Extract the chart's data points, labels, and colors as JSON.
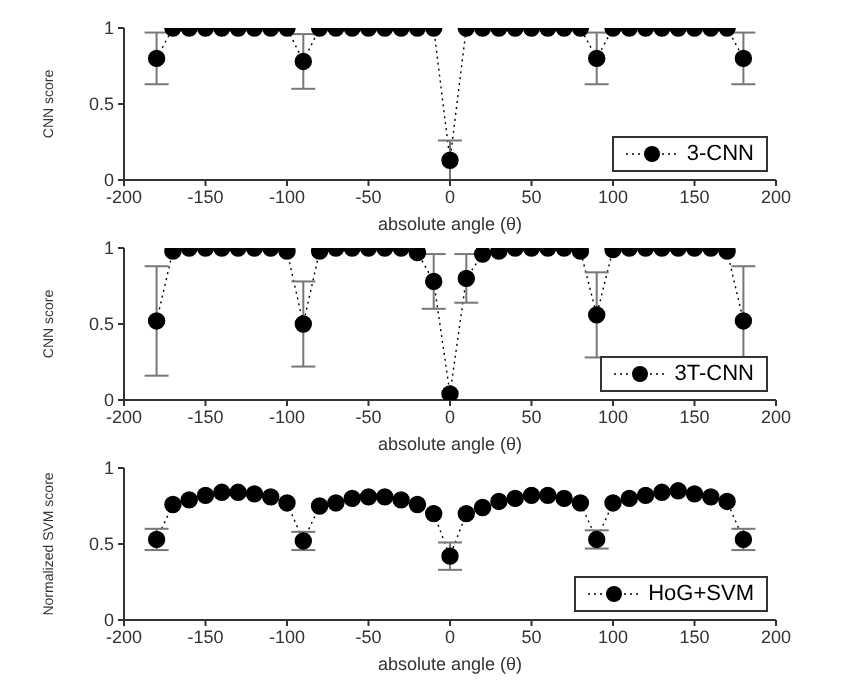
{
  "chart_data": [
    {
      "type": "line",
      "xlabel": "absolute angle (θ)",
      "ylabel": "CNN score",
      "x": [
        -180,
        -170,
        -160,
        -150,
        -140,
        -130,
        -120,
        -110,
        -100,
        -90,
        -80,
        -70,
        -60,
        -50,
        -40,
        -30,
        -20,
        -10,
        0,
        10,
        20,
        30,
        40,
        50,
        60,
        70,
        80,
        90,
        100,
        110,
        120,
        130,
        140,
        150,
        160,
        170,
        180
      ],
      "xlim": [
        -200,
        200
      ],
      "xticks": [
        -200,
        -150,
        -100,
        -50,
        0,
        50,
        100,
        150,
        200
      ],
      "ylim": [
        0,
        1
      ],
      "yticks": [
        0,
        0.5,
        1
      ],
      "legend": "bottom right",
      "marker": "circle",
      "line_style": "dotted",
      "grid": false,
      "series": [
        {
          "name": "3-CNN",
          "color": "#000000",
          "values": [
            0.8,
            1,
            1,
            1,
            1,
            1,
            1,
            1,
            1,
            0.78,
            1,
            1,
            1,
            1,
            1,
            1,
            1,
            1,
            0.13,
            1,
            1,
            1,
            1,
            1,
            1,
            1,
            1,
            0.8,
            1,
            1,
            1,
            1,
            1,
            1,
            1,
            1,
            0.8
          ],
          "errors": [
            0.17,
            null,
            null,
            null,
            null,
            null,
            null,
            null,
            null,
            0.18,
            null,
            null,
            null,
            null,
            null,
            null,
            null,
            null,
            0.13,
            null,
            null,
            null,
            null,
            null,
            null,
            null,
            null,
            0.17,
            null,
            null,
            null,
            null,
            null,
            null,
            null,
            null,
            0.17
          ]
        }
      ]
    },
    {
      "type": "line",
      "xlabel": "absolute angle (θ)",
      "ylabel": "CNN score",
      "x": [
        -180,
        -170,
        -160,
        -150,
        -140,
        -130,
        -120,
        -110,
        -100,
        -90,
        -80,
        -70,
        -60,
        -50,
        -40,
        -30,
        -20,
        -10,
        0,
        10,
        20,
        30,
        40,
        50,
        60,
        70,
        80,
        90,
        100,
        110,
        120,
        130,
        140,
        150,
        160,
        170,
        180
      ],
      "xlim": [
        -200,
        200
      ],
      "xticks": [
        -200,
        -150,
        -100,
        -50,
        0,
        50,
        100,
        150,
        200
      ],
      "ylim": [
        0,
        1
      ],
      "yticks": [
        0,
        0.5,
        1
      ],
      "legend": "bottom right",
      "marker": "circle",
      "line_style": "dotted",
      "grid": false,
      "series": [
        {
          "name": "3T-CNN",
          "color": "#000000",
          "values": [
            0.52,
            0.98,
            1,
            1,
            1,
            1,
            1,
            1,
            0.98,
            0.5,
            0.98,
            1,
            1,
            1,
            1,
            1,
            0.97,
            0.78,
            0.04,
            0.8,
            0.96,
            0.98,
            1,
            1,
            1,
            1,
            0.98,
            0.56,
            0.99,
            1,
            1,
            1,
            1,
            1,
            1,
            0.98,
            0.52
          ],
          "errors": [
            0.36,
            null,
            null,
            null,
            null,
            null,
            null,
            null,
            null,
            0.28,
            null,
            null,
            null,
            null,
            null,
            null,
            null,
            0.18,
            null,
            0.16,
            null,
            null,
            null,
            null,
            null,
            null,
            null,
            0.28,
            null,
            null,
            null,
            null,
            null,
            null,
            null,
            null,
            0.36
          ]
        }
      ]
    },
    {
      "type": "line",
      "xlabel": "absolute angle (θ)",
      "ylabel": "Normalized SVM score",
      "x": [
        -180,
        -170,
        -160,
        -150,
        -140,
        -130,
        -120,
        -110,
        -100,
        -90,
        -80,
        -70,
        -60,
        -50,
        -40,
        -30,
        -20,
        -10,
        0,
        10,
        20,
        30,
        40,
        50,
        60,
        70,
        80,
        90,
        100,
        110,
        120,
        130,
        140,
        150,
        160,
        170,
        180
      ],
      "xlim": [
        -200,
        200
      ],
      "xticks": [
        -200,
        -150,
        -100,
        -50,
        0,
        50,
        100,
        150,
        200
      ],
      "ylim": [
        0,
        1
      ],
      "yticks": [
        0,
        0.5,
        1
      ],
      "legend": "bottom right",
      "marker": "circle",
      "line_style": "dotted",
      "grid": false,
      "series": [
        {
          "name": "HoG+SVM",
          "color": "#000000",
          "values": [
            0.53,
            0.76,
            0.79,
            0.82,
            0.84,
            0.84,
            0.83,
            0.81,
            0.77,
            0.52,
            0.75,
            0.77,
            0.8,
            0.81,
            0.81,
            0.79,
            0.76,
            0.7,
            0.42,
            0.7,
            0.74,
            0.78,
            0.8,
            0.82,
            0.82,
            0.8,
            0.77,
            0.53,
            0.77,
            0.8,
            0.82,
            0.84,
            0.85,
            0.83,
            0.81,
            0.78,
            0.53
          ],
          "errors": [
            0.07,
            null,
            null,
            null,
            null,
            null,
            null,
            null,
            null,
            0.06,
            null,
            null,
            null,
            null,
            null,
            null,
            null,
            null,
            0.09,
            null,
            null,
            null,
            null,
            null,
            null,
            null,
            null,
            0.06,
            null,
            null,
            null,
            null,
            null,
            null,
            null,
            null,
            0.07
          ]
        }
      ]
    }
  ]
}
